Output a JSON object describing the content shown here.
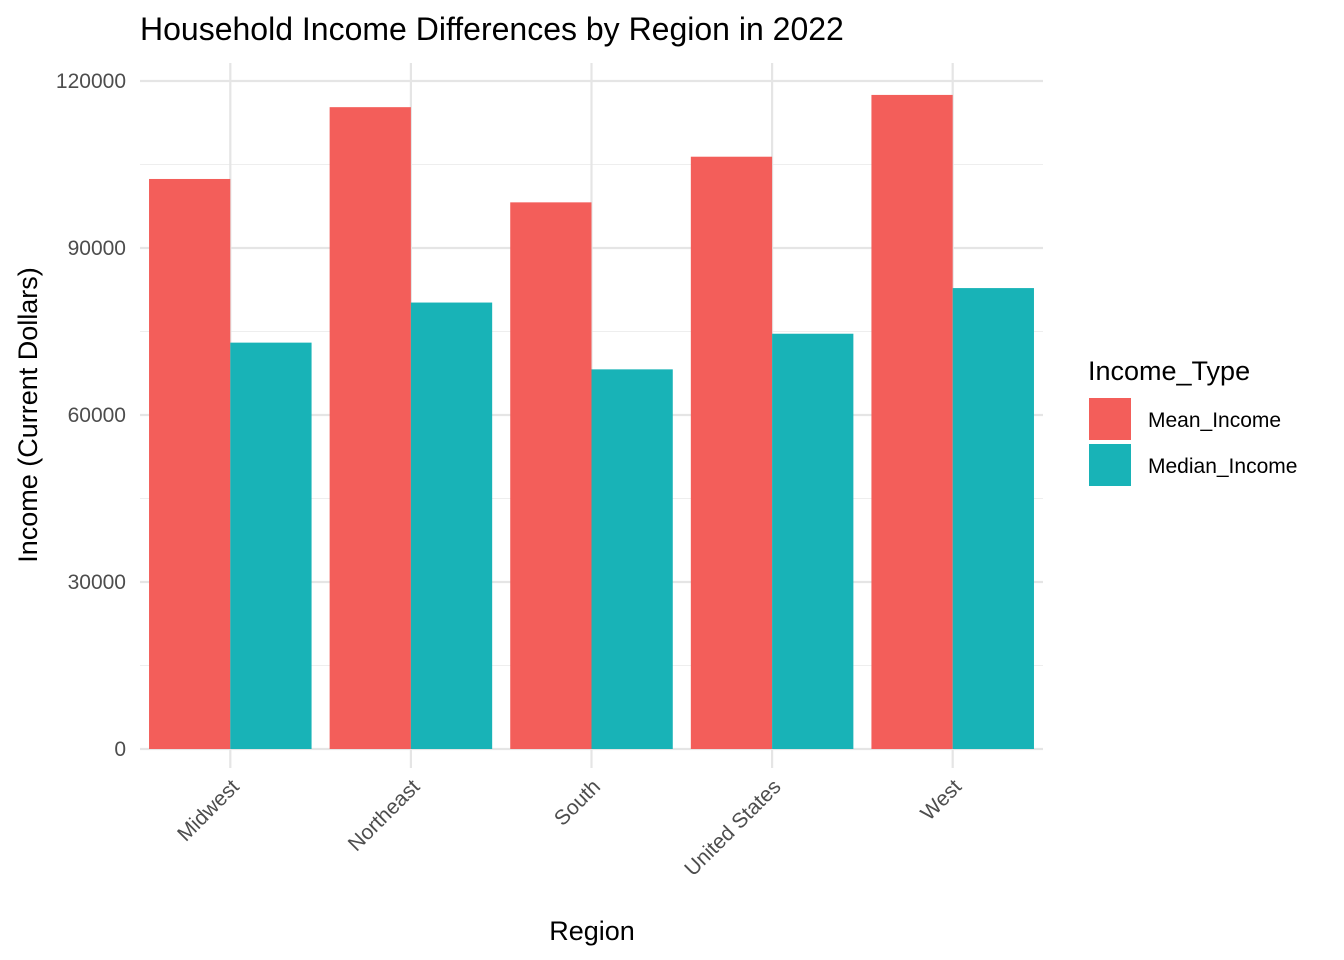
{
  "chart_data": {
    "type": "bar",
    "title": "Household Income Differences by Region in 2022",
    "xlabel": "Region",
    "ylabel": "Income (Current Dollars)",
    "categories": [
      "Midwest",
      "Northeast",
      "South",
      "United States",
      "West"
    ],
    "series": [
      {
        "name": "Mean_Income",
        "color": "#F35E5A",
        "values": [
          102400,
          115300,
          98200,
          106400,
          117500
        ]
      },
      {
        "name": "Median_Income",
        "color": "#18B3B7",
        "values": [
          73000,
          80200,
          68200,
          74600,
          82800
        ]
      }
    ],
    "ylim": [
      0,
      120000
    ],
    "yticks": [
      0,
      30000,
      60000,
      90000,
      120000
    ],
    "ytick_labels": [
      "0",
      "30000",
      "60000",
      "90000",
      "120000"
    ],
    "grid": true,
    "legend": {
      "title": "Income_Type",
      "position": "right"
    }
  }
}
